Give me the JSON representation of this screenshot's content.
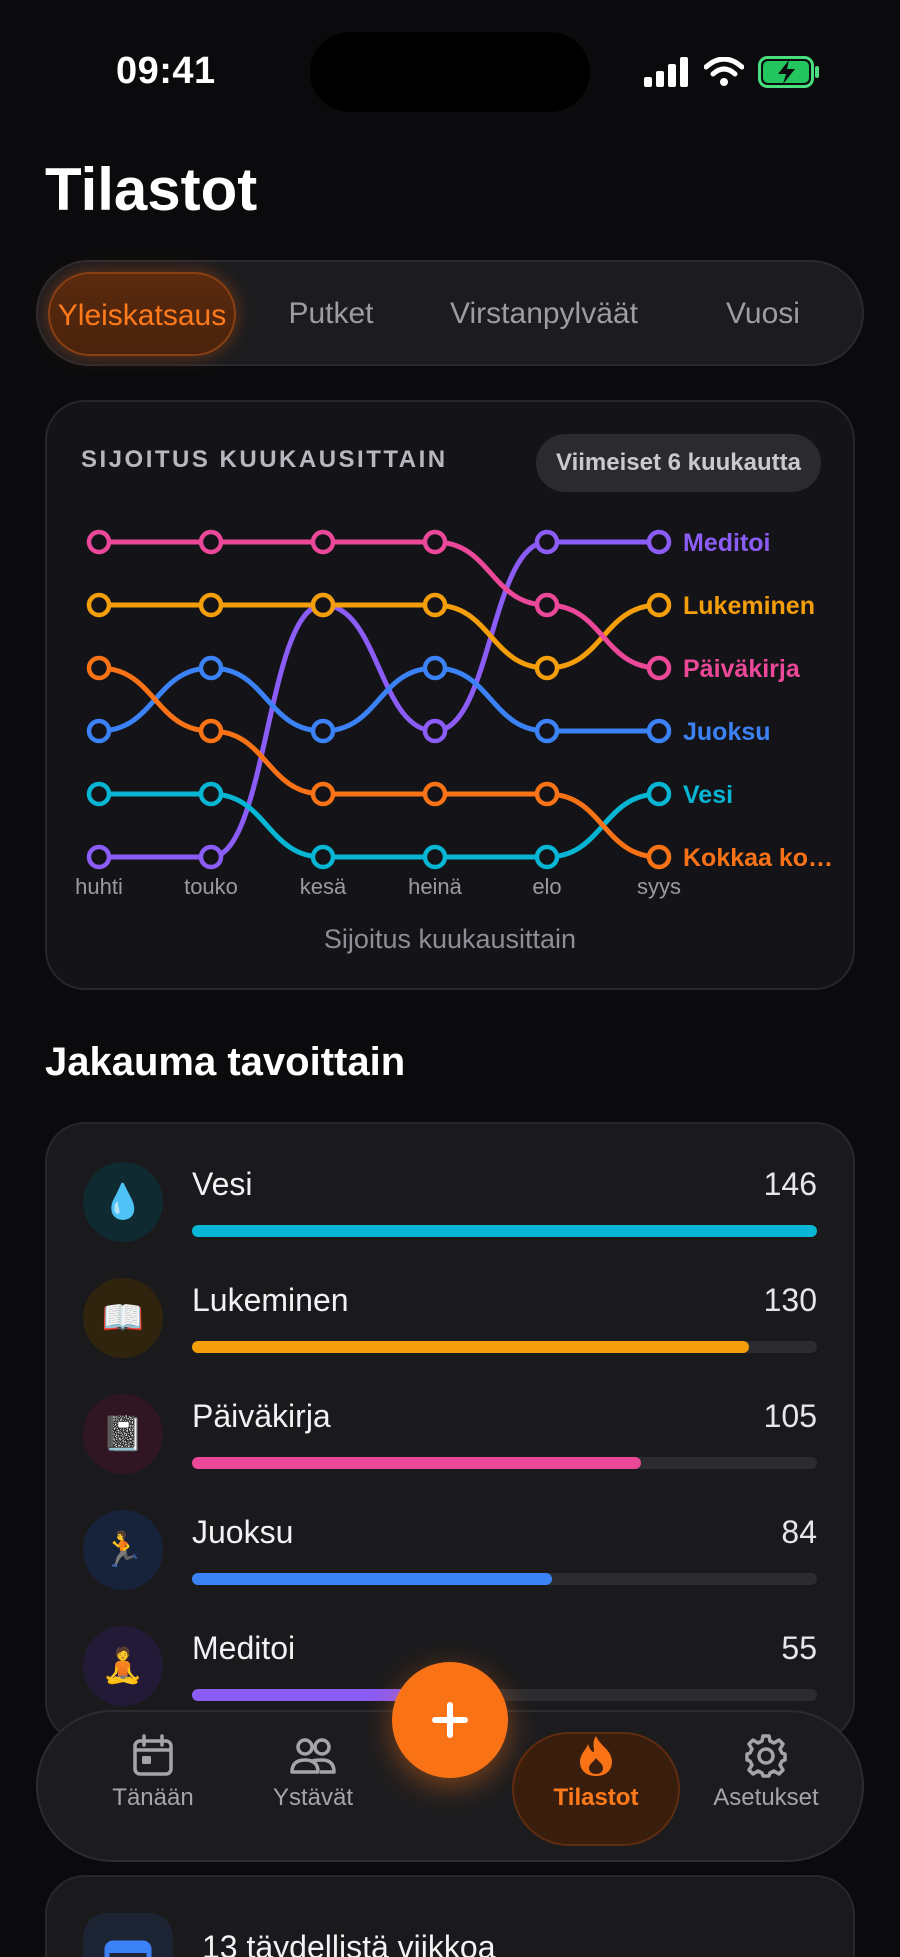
{
  "status": {
    "time": "09:41"
  },
  "title": "Tilastot",
  "segments": [
    {
      "label": "Yleiskatsaus",
      "active": true
    },
    {
      "label": "Putket",
      "active": false
    },
    {
      "label": "Virstanpylväät",
      "active": false
    },
    {
      "label": "Vuosi",
      "active": false
    }
  ],
  "chart_card": {
    "heading": "SIJOITUS KUUKAUSITTAIN",
    "range_label": "Viimeiset 6 kuukautta",
    "caption": "Sijoitus kuukausittain"
  },
  "chart_data": {
    "type": "line",
    "subtype": "bump",
    "x": [
      "huhti",
      "touko",
      "kesä",
      "heinä",
      "elo",
      "syys"
    ],
    "y_axis": "rank",
    "ylim": [
      1,
      6
    ],
    "inverted": true,
    "legend_placement": "right-end-labels",
    "series": [
      {
        "name": "Meditoi",
        "color": "#8b5cf6",
        "values": [
          6,
          6,
          2,
          4,
          1,
          1
        ]
      },
      {
        "name": "Lukeminen",
        "color": "#f59e0b",
        "values": [
          2,
          2,
          2,
          2,
          3,
          2
        ]
      },
      {
        "name": "Päiväkirja",
        "color": "#ec4899",
        "values": [
          1,
          1,
          1,
          1,
          2,
          3
        ]
      },
      {
        "name": "Juoksu",
        "color": "#3b82f6",
        "values": [
          4,
          3,
          4,
          3,
          4,
          4
        ]
      },
      {
        "name": "Vesi",
        "color": "#06b6d4",
        "values": [
          5,
          5,
          6,
          6,
          6,
          5
        ]
      },
      {
        "name": "Kokkaa ko…",
        "color": "#f97316",
        "values": [
          3,
          4,
          5,
          5,
          5,
          6
        ]
      }
    ]
  },
  "distribution": {
    "title": "Jakauma tavoittain",
    "max": 146,
    "items": [
      {
        "name": "Vesi",
        "value": 146,
        "icon": "💧",
        "color": "#06b6d4",
        "icon_bg": "#0f2a30"
      },
      {
        "name": "Lukeminen",
        "value": 130,
        "icon": "📖",
        "color": "#f59e0b",
        "icon_bg": "#30240f"
      },
      {
        "name": "Päiväkirja",
        "value": 105,
        "icon": "📓",
        "color": "#ec4899",
        "icon_bg": "#301522"
      },
      {
        "name": "Juoksu",
        "value": 84,
        "icon": "🏃",
        "color": "#3b82f6",
        "icon_bg": "#17233a"
      },
      {
        "name": "Meditoi",
        "value": 55,
        "icon": "🧘",
        "color": "#8b5cf6",
        "icon_bg": "#221a36"
      }
    ]
  },
  "tabbar": {
    "items": [
      {
        "label": "Tänään",
        "icon": "calendar-icon"
      },
      {
        "label": "Ystävät",
        "icon": "users-icon"
      },
      {
        "label": "Tilastot",
        "icon": "flame-icon",
        "active": true
      },
      {
        "label": "Asetukset",
        "icon": "gear-icon"
      }
    ]
  },
  "perfect_weeks": {
    "text": "13 täydellistä viikkoa"
  }
}
